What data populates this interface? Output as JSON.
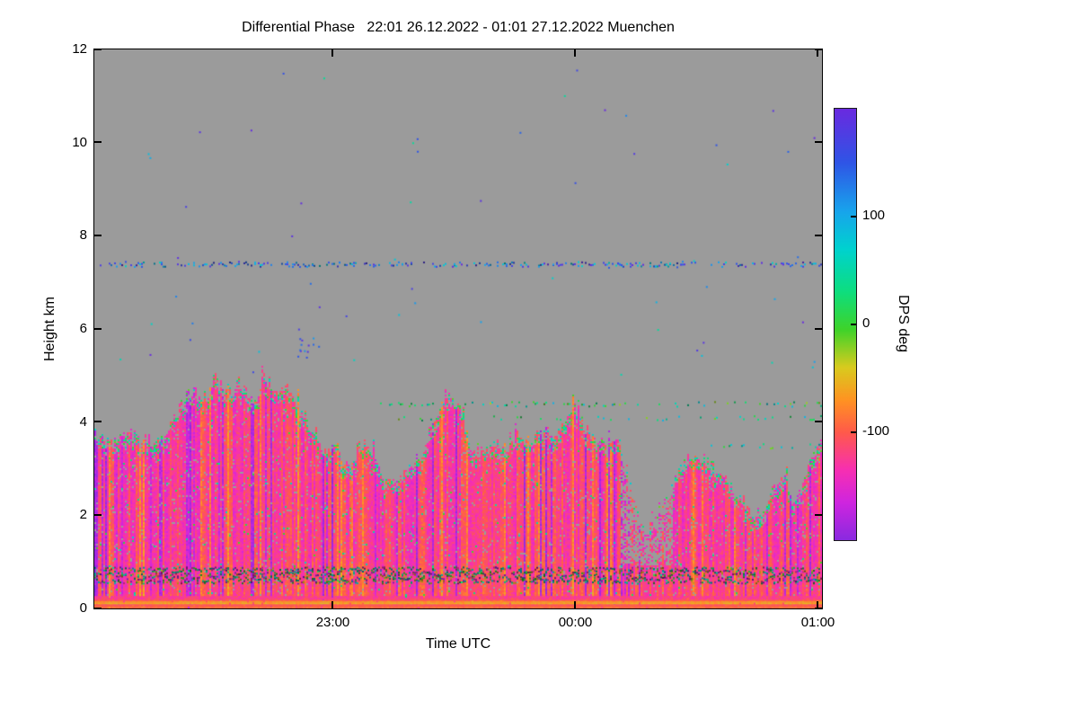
{
  "page": {
    "background": "#ffffff"
  },
  "chart_data": {
    "type": "heatmap",
    "title": "Differential Phase   22:01 26.12.2022 - 01:01 27.12.2022 Muenchen",
    "xlabel": "Time UTC",
    "ylabel": "Height km",
    "station": "Muenchen",
    "time_start": "22:01 26.12.2022",
    "time_end": "01:01 27.12.2022",
    "x_range_minutes": [
      0,
      180
    ],
    "x_ticks": [
      {
        "label": "23:00",
        "minute": 59
      },
      {
        "label": "00:00",
        "minute": 119
      },
      {
        "label": "01:00",
        "minute": 179
      }
    ],
    "ylim": [
      0,
      12
    ],
    "y_ticks": [
      0,
      2,
      4,
      6,
      8,
      10,
      12
    ],
    "grid": false,
    "no_data_color": "#9b9b9b",
    "colorbar": {
      "label": "DPS deg",
      "ticks": [
        100,
        0,
        -100
      ],
      "range": [
        -200,
        200
      ],
      "stops": [
        {
          "v": -200,
          "c": "#8a2ae0"
        },
        {
          "v": -165,
          "c": "#cf25df"
        },
        {
          "v": -135,
          "c": "#f72fb2"
        },
        {
          "v": -100,
          "c": "#ff5a4a"
        },
        {
          "v": -70,
          "c": "#ff9322"
        },
        {
          "v": -40,
          "c": "#d9cb1e"
        },
        {
          "v": -5,
          "c": "#3fd32a"
        },
        {
          "v": 30,
          "c": "#0ede7e"
        },
        {
          "v": 70,
          "c": "#00d2cf"
        },
        {
          "v": 105,
          "c": "#18a4ec"
        },
        {
          "v": 150,
          "c": "#2f55e6"
        },
        {
          "v": 200,
          "c": "#6a2ae0"
        }
      ]
    },
    "cloud_top_profile_km": [
      [
        0,
        3.7
      ],
      [
        4,
        3.5
      ],
      [
        8,
        3.8
      ],
      [
        12,
        3.6
      ],
      [
        16,
        3.5
      ],
      [
        20,
        4.1
      ],
      [
        24,
        4.7
      ],
      [
        27,
        4.4
      ],
      [
        30,
        4.95
      ],
      [
        33,
        4.5
      ],
      [
        36,
        4.85
      ],
      [
        39,
        4.4
      ],
      [
        42,
        4.9
      ],
      [
        45,
        4.5
      ],
      [
        48,
        4.75
      ],
      [
        51,
        4.2
      ],
      [
        54,
        3.7
      ],
      [
        57,
        3.3
      ],
      [
        60,
        3.45
      ],
      [
        63,
        2.9
      ],
      [
        66,
        3.6
      ],
      [
        69,
        3.3
      ],
      [
        72,
        2.7
      ],
      [
        75,
        2.6
      ],
      [
        78,
        3.05
      ],
      [
        81,
        3.3
      ],
      [
        84,
        4.0
      ],
      [
        87,
        4.6
      ],
      [
        90,
        4.3
      ],
      [
        93,
        3.5
      ],
      [
        96,
        3.3
      ],
      [
        99,
        3.6
      ],
      [
        102,
        3.4
      ],
      [
        105,
        3.7
      ],
      [
        108,
        3.5
      ],
      [
        111,
        3.8
      ],
      [
        114,
        3.6
      ],
      [
        117,
        4.0
      ],
      [
        119,
        4.3
      ],
      [
        121,
        3.9
      ],
      [
        124,
        3.6
      ],
      [
        127,
        3.4
      ],
      [
        130,
        3.5
      ],
      [
        132,
        2.8
      ],
      [
        134,
        2.2
      ],
      [
        136,
        1.8
      ],
      [
        139,
        2.1
      ],
      [
        142,
        2.5
      ],
      [
        145,
        3.0
      ],
      [
        148,
        3.25
      ],
      [
        151,
        3.2
      ],
      [
        154,
        2.9
      ],
      [
        157,
        2.6
      ],
      [
        160,
        2.35
      ],
      [
        163,
        2.0
      ],
      [
        166,
        2.1
      ],
      [
        169,
        2.7
      ],
      [
        171,
        2.9
      ],
      [
        173,
        2.3
      ],
      [
        175,
        2.6
      ],
      [
        177,
        3.1
      ],
      [
        180,
        3.5
      ]
    ],
    "features": {
      "value_base_range": [
        -100,
        -145
      ],
      "purple_streak_prob": [
        [
          0,
          25,
          0.2
        ],
        [
          25,
          58,
          0.1
        ],
        [
          58,
          77,
          0.09
        ],
        [
          77,
          119,
          0.05
        ],
        [
          119,
          124,
          0.1
        ],
        [
          124,
          134,
          0.25
        ],
        [
          134,
          160,
          0.07
        ],
        [
          160,
          172,
          0.12
        ],
        [
          172,
          180,
          0.18
        ]
      ],
      "orange_streak_prob": {
        "default": 0.06,
        "boost": [
          [
            77,
            119,
            0.12
          ]
        ]
      },
      "dropout_window": {
        "t_from": 130,
        "t_to": 143,
        "h_above": 0.9,
        "prob": 0.55
      },
      "dark_band_km": [
        0.55,
        0.9
      ],
      "bottom_stripes": [
        {
          "from": 0.0,
          "to": 0.05,
          "value": -92,
          "jitter": 8
        },
        {
          "from": 0.05,
          "to": 0.09,
          "value": -106,
          "jitter": 8
        },
        {
          "from": 0.09,
          "to": 0.15,
          "value": -60,
          "jitter": 12
        },
        {
          "from": 0.15,
          "to": 0.19,
          "value": -100,
          "jitter": 10
        },
        {
          "from": 0.19,
          "to": 0.23,
          "value": -122,
          "jitter": 14
        }
      ],
      "speckle_lines": [
        {
          "km": 7.4,
          "t_from": 0,
          "t_to": 180,
          "density": 0.5,
          "v_min": 60,
          "v_max": 200
        },
        {
          "km": 4.4,
          "t_from": 68,
          "t_to": 180,
          "density": 0.28,
          "v_min": -30,
          "v_max": 95
        },
        {
          "km": 4.1,
          "t_from": 74,
          "t_to": 180,
          "density": 0.2,
          "v_min": -30,
          "v_max": 95
        },
        {
          "km": 3.5,
          "t_from": 148,
          "t_to": 180,
          "density": 0.22,
          "v_min": -20,
          "v_max": 90
        }
      ],
      "scatter_dots": {
        "count": 60,
        "t_min": 0,
        "t_max": 180,
        "h_min": 4.8,
        "h_max": 11.6,
        "v_min": 40,
        "v_max": 200
      },
      "dot_cluster": {
        "t": 53,
        "h": 5.8,
        "count": 14,
        "t_spread": 3,
        "h_spread": 0.4,
        "v_min": 100,
        "v_max": 200
      }
    }
  }
}
